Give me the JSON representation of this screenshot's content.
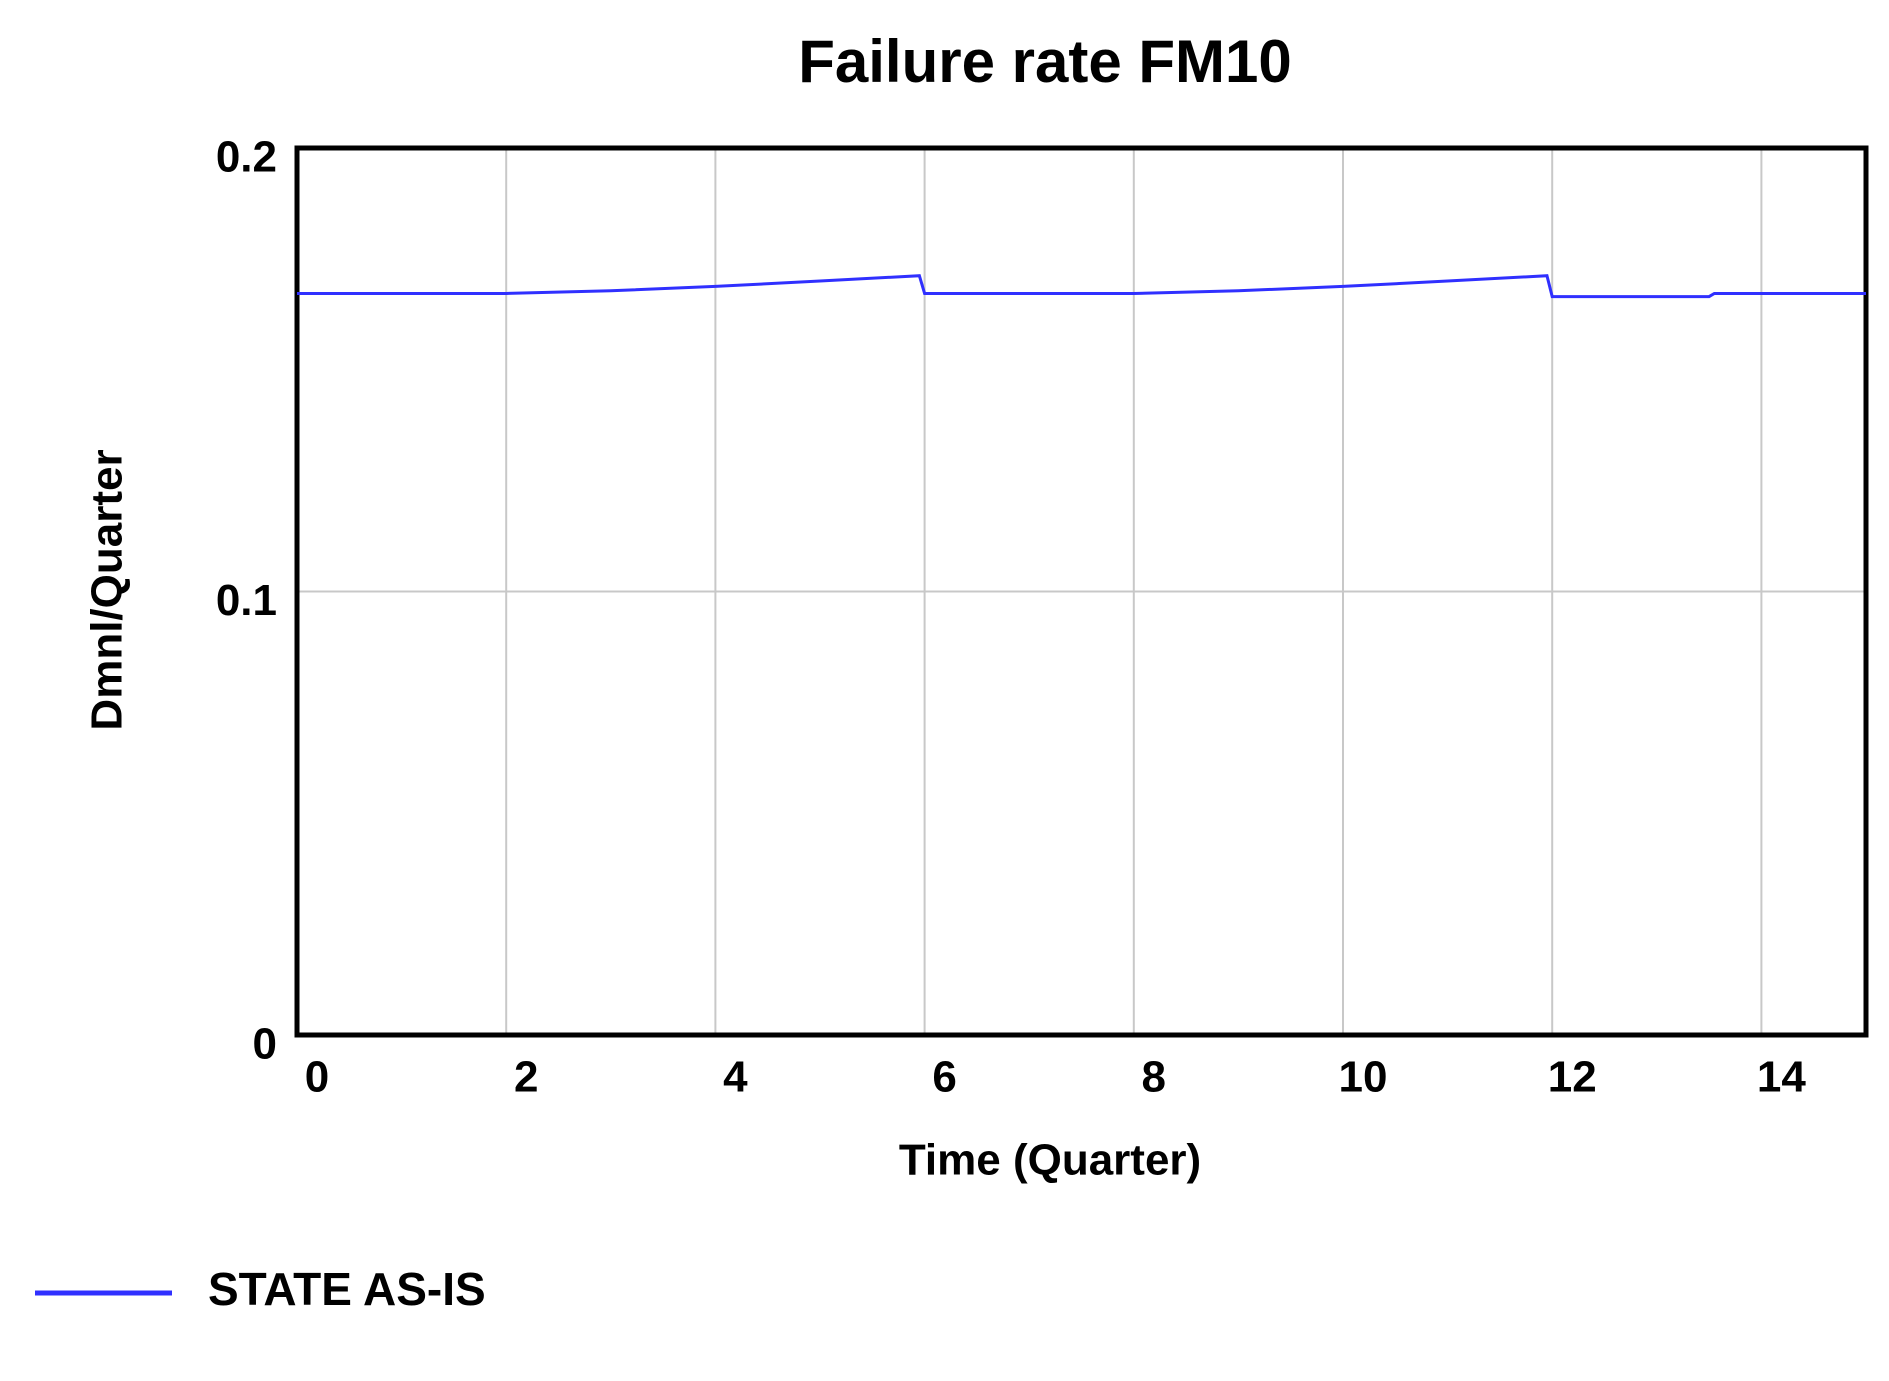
{
  "chart_data": {
    "type": "line",
    "title": "Failure rate FM10",
    "x_label": "Time (Quarter)",
    "y_label": "Dmnl/Quarter",
    "x": [
      0,
      2,
      3,
      4,
      5,
      5.95,
      6,
      8,
      9,
      10,
      11,
      11.95,
      12,
      13.5,
      13.55,
      15
    ],
    "series": [
      {
        "name": "STATE AS-IS",
        "color": "#3030ff",
        "values": [
          0.1672,
          0.1672,
          0.1678,
          0.1688,
          0.17,
          0.1712,
          0.1672,
          0.1672,
          0.1678,
          0.1688,
          0.17,
          0.1712,
          0.1665,
          0.1665,
          0.1672,
          0.1672
        ]
      }
    ],
    "xlim": [
      0,
      15
    ],
    "xticks": [
      0,
      2,
      4,
      6,
      8,
      10,
      12,
      14
    ],
    "ylim": [
      0,
      0.2
    ],
    "yticks": [
      0,
      0.1,
      0.2
    ],
    "grid": true,
    "legend": "bottom-left"
  }
}
